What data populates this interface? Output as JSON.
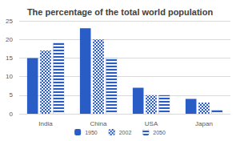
{
  "chart_data": {
    "type": "bar",
    "title": "The percentage of the total world population",
    "categories": [
      "India",
      "China",
      "USA",
      "Japan"
    ],
    "series": [
      {
        "name": "1950",
        "color": "#2a5cc6",
        "values": [
          15,
          23,
          7,
          4
        ]
      },
      {
        "name": "2002",
        "color": "#2a5cc6",
        "values": [
          17,
          20,
          5,
          3
        ]
      },
      {
        "name": "2050",
        "color": "#2a5cc6",
        "values": [
          19,
          15,
          5,
          1
        ]
      }
    ],
    "ylim": [
      0,
      25
    ],
    "yticks": [
      0,
      5,
      10,
      15,
      20,
      25
    ],
    "grid": true,
    "legend": "bottom"
  }
}
